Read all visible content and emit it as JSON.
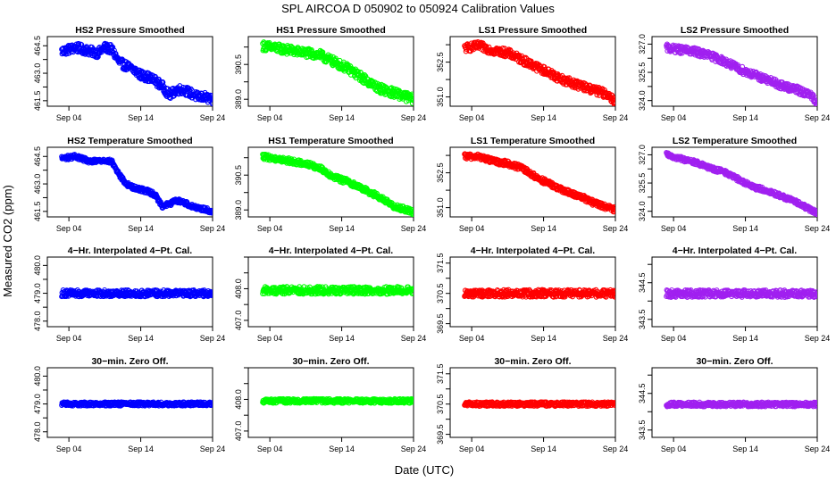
{
  "figure": {
    "title": "SPL   AIRCOA D   050902 to 050924   Calibration Values",
    "ylabel": "Measured CO2 (ppm)",
    "xlabel": "Date (UTC)"
  },
  "chart_data": [
    {
      "type": "scatter",
      "title": "HS2 Pressure Smoothed",
      "color": "#0000ff",
      "xlim": [
        1,
        24
      ],
      "x_ticks": [
        {
          "v": 4,
          "label": "Sep 04"
        },
        {
          "v": 14,
          "label": "Sep 14"
        },
        {
          "v": 24,
          "label": "Sep 24"
        }
      ],
      "ylim": [
        461.2,
        465.0
      ],
      "y_ticks": [
        {
          "v": 461.5,
          "label": "461.5"
        },
        {
          "v": 463.0,
          "label": "463.0"
        },
        {
          "v": 464.5,
          "label": "464.5"
        }
      ],
      "band": 0.25,
      "trend": [
        [
          3,
          464.2
        ],
        [
          5,
          464.4
        ],
        [
          7,
          464.2
        ],
        [
          8,
          464.1
        ],
        [
          9,
          464.4
        ],
        [
          10,
          464.3
        ],
        [
          11,
          463.6
        ],
        [
          12,
          463.4
        ],
        [
          13,
          463.2
        ],
        [
          14,
          462.9
        ],
        [
          15,
          462.8
        ],
        [
          16,
          462.6
        ],
        [
          17,
          462.3
        ],
        [
          18,
          461.8
        ],
        [
          19,
          462.1
        ],
        [
          20,
          462.1
        ],
        [
          21,
          461.9
        ],
        [
          22,
          461.7
        ],
        [
          23,
          461.7
        ],
        [
          24,
          461.5
        ]
      ]
    },
    {
      "type": "scatter",
      "title": "HS1 Pressure Smoothed",
      "color": "#00ff00",
      "xlim": [
        1,
        24
      ],
      "x_ticks": [
        {
          "v": 4,
          "label": "Sep 04"
        },
        {
          "v": 14,
          "label": "Sep 14"
        },
        {
          "v": 24,
          "label": "Sep 24"
        }
      ],
      "ylim": [
        388.7,
        391.7
      ],
      "y_ticks": [
        {
          "v": 389.0,
          "label": "389.0"
        },
        {
          "v": 390.5,
          "label": "390.5"
        }
      ],
      "band": 0.2,
      "trend": [
        [
          3,
          391.3
        ],
        [
          5,
          391.2
        ],
        [
          7,
          391.1
        ],
        [
          9,
          391.0
        ],
        [
          11,
          390.9
        ],
        [
          13,
          390.6
        ],
        [
          15,
          390.3
        ],
        [
          17,
          389.9
        ],
        [
          18,
          389.7
        ],
        [
          19,
          389.5
        ],
        [
          20,
          389.4
        ],
        [
          22,
          389.2
        ],
        [
          24,
          389.0
        ]
      ]
    },
    {
      "type": "scatter",
      "title": "LS1 Pressure Smoothed",
      "color": "#ff0000",
      "xlim": [
        1,
        24
      ],
      "x_ticks": [
        {
          "v": 4,
          "label": "Sep 04"
        },
        {
          "v": 14,
          "label": "Sep 14"
        },
        {
          "v": 24,
          "label": "Sep 24"
        }
      ],
      "ylim": [
        350.6,
        353.6
      ],
      "y_ticks": [
        {
          "v": 351.0,
          "label": "351.0"
        },
        {
          "v": 352.5,
          "label": "352.5"
        }
      ],
      "band": 0.18,
      "trend": [
        [
          3,
          353.1
        ],
        [
          5,
          353.2
        ],
        [
          7,
          353.0
        ],
        [
          9,
          352.9
        ],
        [
          11,
          352.6
        ],
        [
          13,
          352.3
        ],
        [
          15,
          352.0
        ],
        [
          17,
          351.7
        ],
        [
          19,
          351.5
        ],
        [
          21,
          351.3
        ],
        [
          23,
          351.1
        ],
        [
          24,
          350.8
        ]
      ]
    },
    {
      "type": "scatter",
      "title": "LS2 Pressure Smoothed",
      "color": "#a020f0",
      "xlim": [
        1,
        24
      ],
      "x_ticks": [
        {
          "v": 4,
          "label": "Sep 04"
        },
        {
          "v": 14,
          "label": "Sep 14"
        },
        {
          "v": 24,
          "label": "Sep 24"
        }
      ],
      "ylim": [
        323.7,
        327.4
      ],
      "y_ticks": [
        {
          "v": 324.0,
          "label": "324.0"
        },
        {
          "v": 325.5,
          "label": "325.5"
        },
        {
          "v": 327.0,
          "label": "327.0"
        }
      ],
      "band": 0.2,
      "trend": [
        [
          3,
          326.8
        ],
        [
          5,
          326.7
        ],
        [
          7,
          326.6
        ],
        [
          9,
          326.4
        ],
        [
          11,
          326.1
        ],
        [
          13,
          325.7
        ],
        [
          15,
          325.4
        ],
        [
          17,
          325.1
        ],
        [
          19,
          324.8
        ],
        [
          21,
          324.6
        ],
        [
          23,
          324.3
        ],
        [
          24,
          323.9
        ]
      ]
    },
    {
      "type": "scatter",
      "title": "HS2 Temperature Smoothed",
      "color": "#0000ff",
      "xlim": [
        1,
        24
      ],
      "x_ticks": [
        {
          "v": 4,
          "label": "Sep 04"
        },
        {
          "v": 14,
          "label": "Sep 14"
        },
        {
          "v": 24,
          "label": "Sep 24"
        }
      ],
      "ylim": [
        461.2,
        465.0
      ],
      "y_ticks": [
        {
          "v": 461.5,
          "label": "461.5"
        },
        {
          "v": 463.0,
          "label": "463.0"
        },
        {
          "v": 464.5,
          "label": "464.5"
        }
      ],
      "band": 0.12,
      "trend": [
        [
          3,
          464.4
        ],
        [
          5,
          464.5
        ],
        [
          7,
          464.2
        ],
        [
          9,
          464.3
        ],
        [
          10,
          464.2
        ],
        [
          11,
          463.5
        ],
        [
          12,
          463.0
        ],
        [
          13,
          462.8
        ],
        [
          14,
          462.7
        ],
        [
          15,
          462.6
        ],
        [
          16,
          462.4
        ],
        [
          17,
          461.8
        ],
        [
          18,
          461.9
        ],
        [
          19,
          462.1
        ],
        [
          20,
          462.0
        ],
        [
          21,
          461.8
        ],
        [
          22,
          461.7
        ],
        [
          24,
          461.5
        ]
      ]
    },
    {
      "type": "scatter",
      "title": "HS1 Temperature Smoothed",
      "color": "#00ff00",
      "xlim": [
        1,
        24
      ],
      "x_ticks": [
        {
          "v": 4,
          "label": "Sep 04"
        },
        {
          "v": 14,
          "label": "Sep 14"
        },
        {
          "v": 24,
          "label": "Sep 24"
        }
      ],
      "ylim": [
        388.7,
        391.7
      ],
      "y_ticks": [
        {
          "v": 389.0,
          "label": "389.0"
        },
        {
          "v": 390.5,
          "label": "390.5"
        }
      ],
      "band": 0.12,
      "trend": [
        [
          3,
          391.3
        ],
        [
          5,
          391.2
        ],
        [
          7,
          391.1
        ],
        [
          9,
          391.0
        ],
        [
          11,
          390.8
        ],
        [
          13,
          390.4
        ],
        [
          15,
          390.2
        ],
        [
          17,
          389.9
        ],
        [
          19,
          389.6
        ],
        [
          21,
          389.2
        ],
        [
          23,
          389.0
        ],
        [
          24,
          388.9
        ]
      ]
    },
    {
      "type": "scatter",
      "title": "LS1 Temperature Smoothed",
      "color": "#ff0000",
      "xlim": [
        1,
        24
      ],
      "x_ticks": [
        {
          "v": 4,
          "label": "Sep 04"
        },
        {
          "v": 14,
          "label": "Sep 14"
        },
        {
          "v": 24,
          "label": "Sep 24"
        }
      ],
      "ylim": [
        350.6,
        353.6
      ],
      "y_ticks": [
        {
          "v": 351.0,
          "label": "351.0"
        },
        {
          "v": 352.5,
          "label": "352.5"
        }
      ],
      "band": 0.12,
      "trend": [
        [
          3,
          353.2
        ],
        [
          5,
          353.2
        ],
        [
          7,
          353.0
        ],
        [
          9,
          352.9
        ],
        [
          11,
          352.7
        ],
        [
          13,
          352.3
        ],
        [
          15,
          352.0
        ],
        [
          17,
          351.7
        ],
        [
          19,
          351.5
        ],
        [
          21,
          351.2
        ],
        [
          23,
          351.0
        ],
        [
          24,
          350.9
        ]
      ]
    },
    {
      "type": "scatter",
      "title": "LS2 Temperature Smoothed",
      "color": "#a020f0",
      "xlim": [
        1,
        24
      ],
      "x_ticks": [
        {
          "v": 4,
          "label": "Sep 04"
        },
        {
          "v": 14,
          "label": "Sep 14"
        },
        {
          "v": 24,
          "label": "Sep 24"
        }
      ],
      "ylim": [
        323.7,
        327.4
      ],
      "y_ticks": [
        {
          "v": 324.0,
          "label": "324.0"
        },
        {
          "v": 325.5,
          "label": "325.5"
        },
        {
          "v": 327.0,
          "label": "327.0"
        }
      ],
      "band": 0.12,
      "trend": [
        [
          3,
          327.0
        ],
        [
          5,
          326.8
        ],
        [
          7,
          326.6
        ],
        [
          9,
          326.3
        ],
        [
          11,
          326.1
        ],
        [
          13,
          325.7
        ],
        [
          15,
          325.3
        ],
        [
          17,
          325.1
        ],
        [
          19,
          324.8
        ],
        [
          21,
          324.5
        ],
        [
          23,
          324.1
        ],
        [
          24,
          323.9
        ]
      ]
    },
    {
      "type": "scatter",
      "title": "4−Hr. Interpolated 4−Pt. Cal.",
      "color": "#0000ff",
      "xlim": [
        1,
        24
      ],
      "x_ticks": [
        {
          "v": 4,
          "label": "Sep 04"
        },
        {
          "v": 14,
          "label": "Sep 14"
        },
        {
          "v": 24,
          "label": "Sep 24"
        }
      ],
      "ylim": [
        477.8,
        480.3
      ],
      "y_ticks": [
        {
          "v": 478.0,
          "label": "478.0"
        },
        {
          "v": 479.0,
          "label": "479.0"
        },
        {
          "v": 480.0,
          "label": "480.0"
        }
      ],
      "band": 0.12,
      "trend": [
        [
          3,
          479.0
        ],
        [
          24,
          479.0
        ]
      ]
    },
    {
      "type": "scatter",
      "title": "4−Hr. Interpolated 4−Pt. Cal.",
      "color": "#00ff00",
      "xlim": [
        1,
        24
      ],
      "x_ticks": [
        {
          "v": 4,
          "label": "Sep 04"
        },
        {
          "v": 14,
          "label": "Sep 14"
        },
        {
          "v": 24,
          "label": "Sep 24"
        }
      ],
      "ylim": [
        406.8,
        409.0
      ],
      "y_ticks": [
        {
          "v": 407.0,
          "label": "407.0"
        },
        {
          "v": 408.0,
          "label": "408.0"
        }
      ],
      "band": 0.12,
      "trend": [
        [
          3,
          407.95
        ],
        [
          24,
          407.95
        ]
      ]
    },
    {
      "type": "scatter",
      "title": "4−Hr. Interpolated 4−Pt. Cal.",
      "color": "#ff0000",
      "xlim": [
        1,
        24
      ],
      "x_ticks": [
        {
          "v": 4,
          "label": "Sep 04"
        },
        {
          "v": 14,
          "label": "Sep 14"
        },
        {
          "v": 24,
          "label": "Sep 24"
        }
      ],
      "ylim": [
        369.4,
        371.7
      ],
      "y_ticks": [
        {
          "v": 369.5,
          "label": "369.5"
        },
        {
          "v": 370.5,
          "label": "370.5"
        },
        {
          "v": 371.5,
          "label": "371.5"
        }
      ],
      "band": 0.12,
      "trend": [
        [
          3,
          370.5
        ],
        [
          24,
          370.5
        ]
      ]
    },
    {
      "type": "scatter",
      "title": "4−Hr. Interpolated 4−Pt. Cal.",
      "color": "#a020f0",
      "xlim": [
        1,
        24
      ],
      "x_ticks": [
        {
          "v": 4,
          "label": "Sep 04"
        },
        {
          "v": 14,
          "label": "Sep 14"
        },
        {
          "v": 24,
          "label": "Sep 24"
        }
      ],
      "ylim": [
        343.3,
        345.2
      ],
      "y_ticks": [
        {
          "v": 343.5,
          "label": "343.5"
        },
        {
          "v": 344.5,
          "label": "344.5"
        }
      ],
      "band": 0.1,
      "trend": [
        [
          3,
          344.2
        ],
        [
          24,
          344.2
        ]
      ]
    },
    {
      "type": "scatter",
      "title": "30−min. Zero Off.",
      "color": "#0000ff",
      "xlim": [
        1,
        24
      ],
      "x_ticks": [
        {
          "v": 4,
          "label": "Sep 04"
        },
        {
          "v": 14,
          "label": "Sep 14"
        },
        {
          "v": 24,
          "label": "Sep 24"
        }
      ],
      "ylim": [
        477.8,
        480.3
      ],
      "y_ticks": [
        {
          "v": 478.0,
          "label": "478.0"
        },
        {
          "v": 479.0,
          "label": "479.0"
        },
        {
          "v": 480.0,
          "label": "480.0"
        }
      ],
      "band": 0.07,
      "trend": [
        [
          3,
          479.0
        ],
        [
          24,
          479.0
        ]
      ]
    },
    {
      "type": "scatter",
      "title": "30−min. Zero Off.",
      "color": "#00ff00",
      "xlim": [
        1,
        24
      ],
      "x_ticks": [
        {
          "v": 4,
          "label": "Sep 04"
        },
        {
          "v": 14,
          "label": "Sep 14"
        },
        {
          "v": 24,
          "label": "Sep 24"
        }
      ],
      "ylim": [
        406.8,
        409.0
      ],
      "y_ticks": [
        {
          "v": 407.0,
          "label": "407.0"
        },
        {
          "v": 408.0,
          "label": "408.0"
        }
      ],
      "band": 0.07,
      "trend": [
        [
          3,
          407.95
        ],
        [
          24,
          407.95
        ]
      ]
    },
    {
      "type": "scatter",
      "title": "30−min. Zero Off.",
      "color": "#ff0000",
      "xlim": [
        1,
        24
      ],
      "x_ticks": [
        {
          "v": 4,
          "label": "Sep 04"
        },
        {
          "v": 14,
          "label": "Sep 14"
        },
        {
          "v": 24,
          "label": "Sep 24"
        }
      ],
      "ylim": [
        369.4,
        371.7
      ],
      "y_ticks": [
        {
          "v": 369.5,
          "label": "369.5"
        },
        {
          "v": 370.5,
          "label": "370.5"
        },
        {
          "v": 371.5,
          "label": "371.5"
        }
      ],
      "band": 0.07,
      "trend": [
        [
          3,
          370.5
        ],
        [
          24,
          370.5
        ]
      ]
    },
    {
      "type": "scatter",
      "title": "30−min. Zero Off.",
      "color": "#a020f0",
      "xlim": [
        1,
        24
      ],
      "x_ticks": [
        {
          "v": 4,
          "label": "Sep 04"
        },
        {
          "v": 14,
          "label": "Sep 14"
        },
        {
          "v": 24,
          "label": "Sep 24"
        }
      ],
      "ylim": [
        343.3,
        345.2
      ],
      "y_ticks": [
        {
          "v": 343.5,
          "label": "343.5"
        },
        {
          "v": 344.5,
          "label": "344.5"
        }
      ],
      "band": 0.06,
      "trend": [
        [
          3,
          344.2
        ],
        [
          24,
          344.2
        ]
      ]
    }
  ]
}
